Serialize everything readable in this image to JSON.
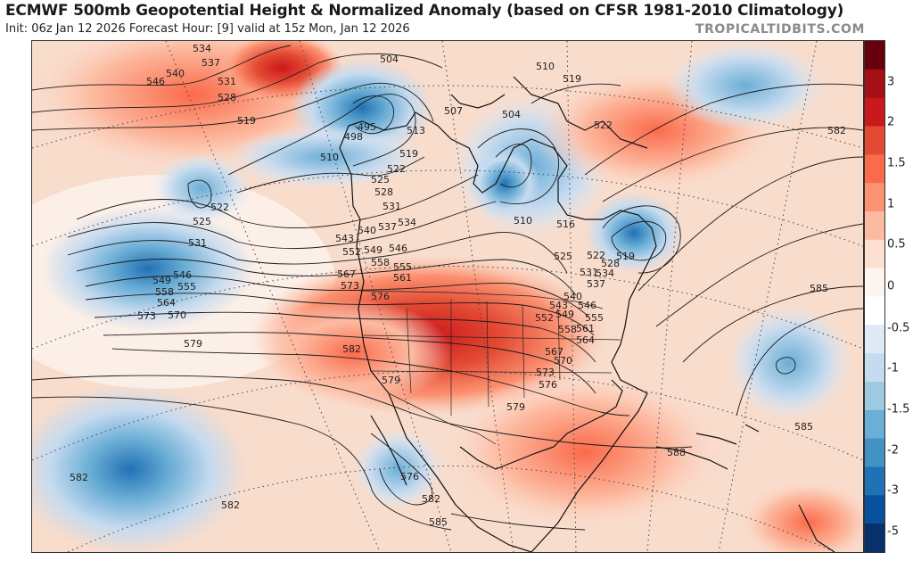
{
  "header": {
    "title": "ECMWF 500mb Geopotential Height & Normalized Anomaly (based on CFSR 1981-2010 Climatology)",
    "subtitle": "Init: 06z Jan 12 2026   Forecast Hour: [9]   valid at 15z Mon, Jan 12 2026",
    "brand": "TROPICALTIDBITS.COM"
  },
  "colorbar": {
    "ticks": [
      "3",
      "2",
      "1.5",
      "1",
      "0.5",
      "0",
      "-0.5",
      "-1",
      "-1.5",
      "-2",
      "-3",
      "-5"
    ],
    "colors": [
      "#67000d",
      "#a50f15",
      "#cb181d",
      "#e34a33",
      "#fb6a4a",
      "#fc9272",
      "#fcbba1",
      "#fee0d2",
      "#fff5f0",
      "#ffffff",
      "#deebf7",
      "#c6dbef",
      "#9ecae1",
      "#6baed6",
      "#4292c6",
      "#2171b5",
      "#08519c",
      "#08306b"
    ]
  },
  "contour_labels": [
    "534",
    "537",
    "540",
    "546",
    "531",
    "528",
    "519",
    "504",
    "510",
    "516",
    "495",
    "498",
    "507",
    "513",
    "522",
    "525",
    "549",
    "555",
    "558",
    "564",
    "570",
    "573",
    "576",
    "579",
    "582",
    "585",
    "588",
    "561",
    "567",
    "552",
    "543"
  ],
  "map_labels": [
    {
      "text": "534",
      "ref": "nw-534"
    },
    {
      "text": "537",
      "ref": "nw-537"
    },
    {
      "text": "540",
      "ref": "nw-540"
    },
    {
      "text": "546",
      "ref": "nw-546"
    },
    {
      "text": "531",
      "ref": "nw-531"
    },
    {
      "text": "528",
      "ref": "nw-528"
    },
    {
      "text": "519",
      "ref": "nw-519"
    },
    {
      "text": "504",
      "ref": "ak-504"
    },
    {
      "text": "495",
      "ref": "ak-495"
    },
    {
      "text": "498",
      "ref": "ak-498"
    },
    {
      "text": "510",
      "ref": "bc-510"
    },
    {
      "text": "513",
      "ref": "yk-513"
    },
    {
      "text": "507",
      "ref": "nc-507"
    },
    {
      "text": "504",
      "ref": "hb-504"
    },
    {
      "text": "510",
      "ref": "gl-510"
    },
    {
      "text": "519",
      "ref": "gl-519"
    },
    {
      "text": "522",
      "ref": "gl-522"
    },
    {
      "text": "582",
      "ref": "atl-582"
    },
    {
      "text": "522",
      "ref": "pac-522"
    },
    {
      "text": "525",
      "ref": "pac-525"
    },
    {
      "text": "531",
      "ref": "pac-531"
    },
    {
      "text": "546",
      "ref": "pac-546"
    },
    {
      "text": "549",
      "ref": "pac-549"
    },
    {
      "text": "555",
      "ref": "pac-555"
    },
    {
      "text": "558",
      "ref": "pac-558"
    },
    {
      "text": "564",
      "ref": "pac-564"
    },
    {
      "text": "573",
      "ref": "pac-573"
    },
    {
      "text": "570",
      "ref": "pac-570"
    },
    {
      "text": "579",
      "ref": "pac-579"
    },
    {
      "text": "519",
      "ref": "ca-519"
    },
    {
      "text": "522",
      "ref": "ca-522"
    },
    {
      "text": "525",
      "ref": "ca-525"
    },
    {
      "text": "528",
      "ref": "ca-528"
    },
    {
      "text": "531",
      "ref": "ca-531"
    },
    {
      "text": "534",
      "ref": "ca-534"
    },
    {
      "text": "537",
      "ref": "ca-537"
    },
    {
      "text": "540",
      "ref": "ca-540"
    },
    {
      "text": "543",
      "ref": "ca-543"
    },
    {
      "text": "546",
      "ref": "ca-546"
    },
    {
      "text": "549",
      "ref": "ca-549"
    },
    {
      "text": "552",
      "ref": "ca-552"
    },
    {
      "text": "555",
      "ref": "ca-555"
    },
    {
      "text": "558",
      "ref": "ca-558"
    },
    {
      "text": "561",
      "ref": "ca-561"
    },
    {
      "text": "567",
      "ref": "ca-567"
    },
    {
      "text": "573",
      "ref": "ca-573"
    },
    {
      "text": "576",
      "ref": "ca-576"
    },
    {
      "text": "510",
      "ref": "ql-510"
    },
    {
      "text": "516",
      "ref": "ql-516"
    },
    {
      "text": "525",
      "ref": "ql-525"
    },
    {
      "text": "522",
      "ref": "ne-522"
    },
    {
      "text": "528",
      "ref": "ne-528"
    },
    {
      "text": "519",
      "ref": "ne-519"
    },
    {
      "text": "531",
      "ref": "ne-531"
    },
    {
      "text": "534",
      "ref": "ne-534"
    },
    {
      "text": "537",
      "ref": "ne-537"
    },
    {
      "text": "540",
      "ref": "e-540"
    },
    {
      "text": "543",
      "ref": "e-543"
    },
    {
      "text": "546",
      "ref": "e-546"
    },
    {
      "text": "549",
      "ref": "e-549"
    },
    {
      "text": "552",
      "ref": "e-552"
    },
    {
      "text": "555",
      "ref": "e-555"
    },
    {
      "text": "558",
      "ref": "e-558"
    },
    {
      "text": "561",
      "ref": "e-561"
    },
    {
      "text": "564",
      "ref": "e-564"
    },
    {
      "text": "567",
      "ref": "e-567"
    },
    {
      "text": "570",
      "ref": "e-570"
    },
    {
      "text": "573",
      "ref": "e-573"
    },
    {
      "text": "576",
      "ref": "e-576"
    },
    {
      "text": "579",
      "ref": "se-579"
    },
    {
      "text": "582",
      "ref": "w-582"
    },
    {
      "text": "579",
      "ref": "sw-579"
    },
    {
      "text": "576",
      "ref": "mx-576"
    },
    {
      "text": "582",
      "ref": "mx-582"
    },
    {
      "text": "585",
      "ref": "mx-585"
    },
    {
      "text": "582",
      "ref": "spac-582a"
    },
    {
      "text": "582",
      "ref": "spac-582b"
    },
    {
      "text": "585",
      "ref": "atl-585a"
    },
    {
      "text": "585",
      "ref": "atl-585b"
    },
    {
      "text": "588",
      "ref": "car-588"
    }
  ]
}
